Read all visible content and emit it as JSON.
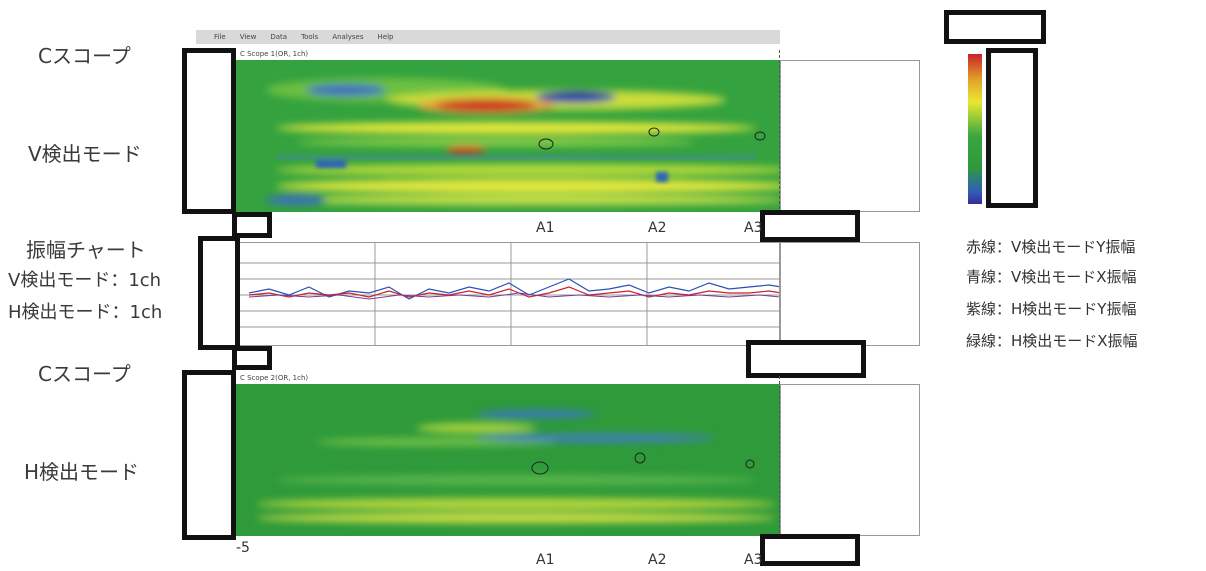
{
  "menu": {
    "items": [
      {
        "label": "File"
      },
      {
        "label": "View"
      },
      {
        "label": "Data"
      },
      {
        "label": "Tools"
      },
      {
        "label": "Analyses"
      },
      {
        "label": "Help"
      }
    ]
  },
  "left_labels": {
    "cscope_top": "Cスコープ",
    "v_mode": "V検出モード",
    "amp_chart": "振幅チャート",
    "v_mode_1ch": "V検出モード：1ch",
    "h_mode_1ch": "H検出モード：1ch",
    "cscope_bottom": "Cスコープ",
    "h_mode": "H検出モード"
  },
  "panels": {
    "top_title": "C Scope 1(OR, 1ch)",
    "bottom_title": "C Scope 2(OR, 1ch)"
  },
  "markers": {
    "a1": "A1",
    "a2": "A2",
    "a3": "A3",
    "axis_start": "-5"
  },
  "legend": {
    "red": "赤線：V検出モードY振幅",
    "blue": "青線：V検出モードX振幅",
    "purple": "紫線：H検出モードY振幅",
    "green": "緑線：H検出モードX振幅"
  },
  "colors": {
    "field_green": "#2f9a3c",
    "hot_red": "#d2221f",
    "cold_blue": "#2a5fb8",
    "mid_yellow": "#e8e832"
  }
}
